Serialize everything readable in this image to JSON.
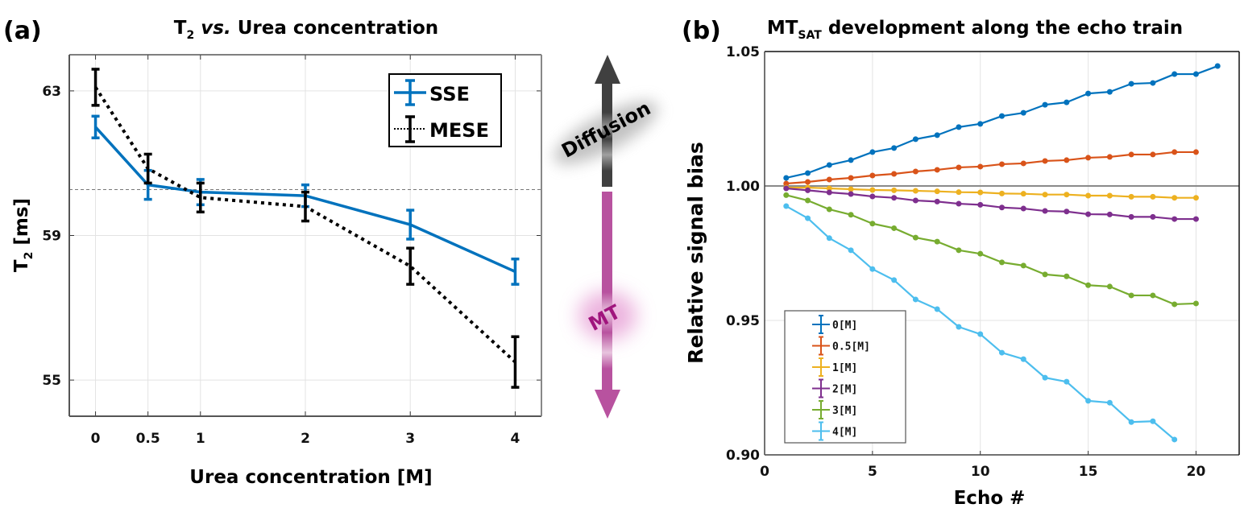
{
  "figure": {
    "panel_a_label": "(a)",
    "panel_b_label": "(b)",
    "arrow_up_label": "Diffusion",
    "arrow_down_label": "MT",
    "colors": {
      "diffusion_arrow": "#404040",
      "mt_arrow": "#b8529f",
      "mt_text": "#a0157d"
    }
  },
  "chart_data": [
    {
      "id": "a",
      "type": "line",
      "title_main": "T",
      "title_sub": "2",
      "title_italic": "vs.",
      "title_rest": "Urea concentration",
      "xlabel": "Urea concentration [M]",
      "ylabel_main": "T",
      "ylabel_sub": "2",
      "ylabel_rest": "[ms]",
      "x": [
        0,
        0.5,
        1,
        2,
        3,
        4
      ],
      "xticks": [
        0,
        0.5,
        1,
        2,
        3,
        4
      ],
      "xtick_labels": [
        "0",
        "0.5",
        "1",
        "2",
        "3",
        "4"
      ],
      "yticks": [
        55,
        59,
        63
      ],
      "ytick_labels": [
        "55",
        "59",
        "63"
      ],
      "xlim": [
        -0.25,
        4.25
      ],
      "ylim": [
        54,
        64
      ],
      "grid": true,
      "reference_line": 60.27,
      "legend_position": "top-right",
      "series": [
        {
          "name": "SSE",
          "color": "#0072bd",
          "style": "solid",
          "values": [
            62.0,
            60.4,
            60.2,
            60.1,
            59.3,
            58.0
          ],
          "errors": [
            0.3,
            0.4,
            0.35,
            0.3,
            0.4,
            0.35
          ]
        },
        {
          "name": "MESE",
          "color": "#000000",
          "style": "dotted",
          "values": [
            63.1,
            60.85,
            60.05,
            59.8,
            58.15,
            55.5
          ],
          "errors": [
            0.5,
            0.4,
            0.4,
            0.4,
            0.5,
            0.7
          ]
        }
      ]
    },
    {
      "id": "b",
      "type": "line",
      "title_main": "MT",
      "title_sub": "SAT",
      "title_rest": "development along the echo train",
      "xlabel": "Echo #",
      "ylabel": "Relative signal bias",
      "xticks": [
        0,
        5,
        10,
        15,
        20
      ],
      "xtick_labels": [
        "0",
        "5",
        "10",
        "15",
        "20"
      ],
      "yticks": [
        0.9,
        0.95,
        1.0,
        1.05
      ],
      "ytick_labels": [
        "0.90",
        "0.95",
        "1.00",
        "1.05"
      ],
      "xlim": [
        0,
        22
      ],
      "ylim": [
        0.9,
        1.05
      ],
      "grid": true,
      "reference_line": 1.0,
      "legend_position": "bottom-left",
      "series": [
        {
          "name": "0[M]",
          "color": "#0072bd",
          "x": [
            1,
            2,
            3,
            4,
            5,
            6,
            7,
            8,
            9,
            10,
            11,
            12,
            13,
            14,
            15,
            16,
            17,
            18,
            19,
            20,
            21
          ],
          "values": [
            1.003,
            1.0048,
            1.0078,
            1.0096,
            1.0126,
            1.0141,
            1.0174,
            1.0189,
            1.0219,
            1.0231,
            1.026,
            1.0272,
            1.0302,
            1.0311,
            1.0344,
            1.035,
            1.038,
            1.0383,
            1.0416,
            1.0416,
            1.0446
          ]
        },
        {
          "name": "0.5[M]",
          "color": "#d95319",
          "x": [
            1,
            2,
            3,
            4,
            5,
            6,
            7,
            8,
            9,
            10,
            11,
            12,
            13,
            14,
            15,
            16,
            17,
            18,
            19,
            20
          ],
          "values": [
            1.0009,
            1.0015,
            1.0024,
            1.003,
            1.0039,
            1.0045,
            1.0054,
            1.006,
            1.0069,
            1.0072,
            1.0081,
            1.0084,
            1.0093,
            1.0096,
            1.0105,
            1.0108,
            1.0117,
            1.0117,
            1.0126,
            1.0126
          ]
        },
        {
          "name": "1[M]",
          "color": "#edb120",
          "x": [
            1,
            2,
            3,
            4,
            5,
            6,
            7,
            8,
            9,
            10,
            11,
            12,
            13,
            14,
            15,
            16,
            17,
            18,
            19,
            20
          ],
          "values": [
            0.9994,
            0.9994,
            0.9991,
            0.9988,
            0.9985,
            0.9984,
            0.9982,
            0.998,
            0.9977,
            0.9976,
            0.9972,
            0.9971,
            0.9968,
            0.9968,
            0.9964,
            0.9964,
            0.996,
            0.996,
            0.9956,
            0.9956
          ]
        },
        {
          "name": "2[M]",
          "color": "#7e2f8e",
          "x": [
            1,
            2,
            3,
            4,
            5,
            6,
            7,
            8,
            9,
            10,
            11,
            12,
            13,
            14,
            15,
            16,
            17,
            18,
            19,
            20
          ],
          "values": [
            0.9991,
            0.9984,
            0.9976,
            0.997,
            0.9961,
            0.9956,
            0.9946,
            0.9942,
            0.9934,
            0.993,
            0.992,
            0.9916,
            0.9907,
            0.9905,
            0.9895,
            0.9894,
            0.9885,
            0.9885,
            0.9877,
            0.9877
          ]
        },
        {
          "name": "3[M]",
          "color": "#77ac30",
          "x": [
            1,
            2,
            3,
            4,
            5,
            6,
            7,
            8,
            9,
            10,
            11,
            12,
            13,
            14,
            15,
            16,
            17,
            18,
            19,
            20
          ],
          "values": [
            0.9966,
            0.9946,
            0.9913,
            0.9893,
            0.986,
            0.9843,
            0.9808,
            0.9793,
            0.9761,
            0.9748,
            0.9716,
            0.9704,
            0.9671,
            0.9664,
            0.9631,
            0.9626,
            0.9593,
            0.9593,
            0.956,
            0.9563
          ]
        },
        {
          "name": "4[M]",
          "color": "#4dbeee",
          "x": [
            1,
            2,
            3,
            4,
            5,
            6,
            7,
            8,
            9,
            10,
            11,
            12,
            13,
            14,
            15,
            16,
            17,
            18,
            19
          ],
          "values": [
            0.9925,
            0.988,
            0.9806,
            0.9761,
            0.9691,
            0.965,
            0.9578,
            0.9542,
            0.9476,
            0.9449,
            0.938,
            0.9356,
            0.9287,
            0.9272,
            0.9201,
            0.9194,
            0.9122,
            0.9125,
            0.9057
          ]
        }
      ]
    }
  ]
}
